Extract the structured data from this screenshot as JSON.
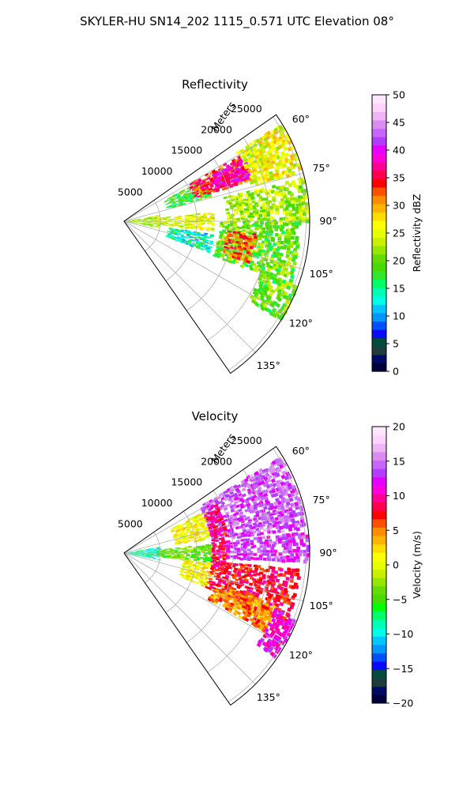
{
  "figure_title": "SKYLER-HU  SN14_202  1115_0.571 UTC Elevation 08°",
  "range_label": "Meters",
  "chart_data": [
    {
      "type": "heatmap",
      "title": "Reflectivity",
      "projection": "polar-sector",
      "theta_range_deg": [
        55,
        145
      ],
      "radius_ticks": [
        5000,
        10000,
        15000,
        20000,
        25000
      ],
      "theta_ticks": [
        "60°",
        "75°",
        "90°",
        "105°",
        "120°",
        "135°"
      ],
      "grid": true,
      "colorbar": {
        "label": "Reflectivity dBZ",
        "range": [
          0,
          50
        ],
        "ticks": [
          "0",
          "5",
          "10",
          "15",
          "20",
          "25",
          "30",
          "35",
          "40",
          "45",
          "50"
        ],
        "colors": [
          "#00003c",
          "#000a64",
          "#1e3c3c",
          "#004b3c",
          "#0a0aff",
          "#0050ff",
          "#0096ff",
          "#00c8ff",
          "#00ffe6",
          "#00ffb4",
          "#00ff64",
          "#32e628",
          "#46dc00",
          "#64dc00",
          "#96e600",
          "#c8f000",
          "#e6ff00",
          "#ffff00",
          "#ffdc00",
          "#ffb400",
          "#ff8c00",
          "#ff5000",
          "#ff0000",
          "#ff0050",
          "#ff0096",
          "#ff00dc",
          "#e600ff",
          "#b43cff",
          "#c864ff",
          "#dc8cf0",
          "#eeb4f5",
          "#ffd2ff",
          "#ffe6ff"
        ]
      },
      "echo_regions": [
        {
          "r": [
            300,
            4500
          ],
          "theta": [
            80,
            100
          ],
          "dbz": 22
        },
        {
          "r": [
            4500,
            12000
          ],
          "theta": [
            84,
            96
          ],
          "dbz": 25
        },
        {
          "r": [
            6000,
            12000
          ],
          "theta": [
            62,
            73
          ],
          "dbz": 18
        },
        {
          "r": [
            10000,
            18000
          ],
          "theta": [
            60,
            72
          ],
          "dbz": 34
        },
        {
          "r": [
            13000,
            18000
          ],
          "theta": [
            62,
            70
          ],
          "dbz": 38
        },
        {
          "r": [
            18000,
            25000
          ],
          "theta": [
            58,
            74
          ],
          "dbz": 26
        },
        {
          "r": [
            14000,
            25000
          ],
          "theta": [
            76,
            90
          ],
          "dbz": 23
        },
        {
          "r": [
            13000,
            24000
          ],
          "theta": [
            90,
            110
          ],
          "dbz": 20
        },
        {
          "r": [
            14000,
            18000
          ],
          "theta": [
            95,
            108
          ],
          "dbz": 32
        },
        {
          "r": [
            6000,
            12000
          ],
          "theta": [
            98,
            110
          ],
          "dbz": 14
        },
        {
          "r": [
            20000,
            25000
          ],
          "theta": [
            110,
            122
          ],
          "dbz": 20
        }
      ]
    },
    {
      "type": "heatmap",
      "title": "Velocity",
      "projection": "polar-sector",
      "theta_range_deg": [
        55,
        145
      ],
      "radius_ticks": [
        5000,
        10000,
        15000,
        20000,
        25000
      ],
      "theta_ticks": [
        "60°",
        "75°",
        "90°",
        "105°",
        "120°",
        "135°"
      ],
      "grid": true,
      "colorbar": {
        "label": "Velocity (m/s)",
        "range": [
          -20,
          20
        ],
        "ticks": [
          "-20",
          "-15",
          "-10",
          "-5",
          "0",
          "5",
          "10",
          "15",
          "20"
        ],
        "colors": [
          "#00003c",
          "#000a64",
          "#1e3c3c",
          "#004b3c",
          "#0a0aff",
          "#0050ff",
          "#0096ff",
          "#00c8ff",
          "#00ffe6",
          "#00ffb4",
          "#00ff64",
          "#00ff00",
          "#46dc00",
          "#64dc00",
          "#96e600",
          "#c8f000",
          "#e6ff00",
          "#ffff00",
          "#ffdc00",
          "#ffb400",
          "#ff8c00",
          "#ff5000",
          "#ff0000",
          "#ff0050",
          "#ff0096",
          "#ff00dc",
          "#e600ff",
          "#b43cff",
          "#c864ff",
          "#dc8cf0",
          "#eeb4f5",
          "#ffd2ff",
          "#ffe6ff"
        ]
      },
      "echo_regions": [
        {
          "r": [
            300,
            4500
          ],
          "theta": [
            80,
            100
          ],
          "vel": -9
        },
        {
          "r": [
            4500,
            12000
          ],
          "theta": [
            84,
            96
          ],
          "vel": -4
        },
        {
          "r": [
            7000,
            12000
          ],
          "theta": [
            62,
            80
          ],
          "vel": 1
        },
        {
          "r": [
            12000,
            25000
          ],
          "theta": [
            58,
            82
          ],
          "vel": 14
        },
        {
          "r": [
            12000,
            14000
          ],
          "theta": [
            62,
            100
          ],
          "vel": 9
        },
        {
          "r": [
            14000,
            25000
          ],
          "theta": [
            83,
            92
          ],
          "vel": 13
        },
        {
          "r": [
            8000,
            12000
          ],
          "theta": [
            96,
            112
          ],
          "vel": 1
        },
        {
          "r": [
            12000,
            24000
          ],
          "theta": [
            95,
            112
          ],
          "vel": 8
        },
        {
          "r": [
            13000,
            22000
          ],
          "theta": [
            108,
            118
          ],
          "vel": 5
        },
        {
          "r": [
            22000,
            25000
          ],
          "theta": [
            110,
            124
          ],
          "vel": 11
        }
      ]
    }
  ]
}
